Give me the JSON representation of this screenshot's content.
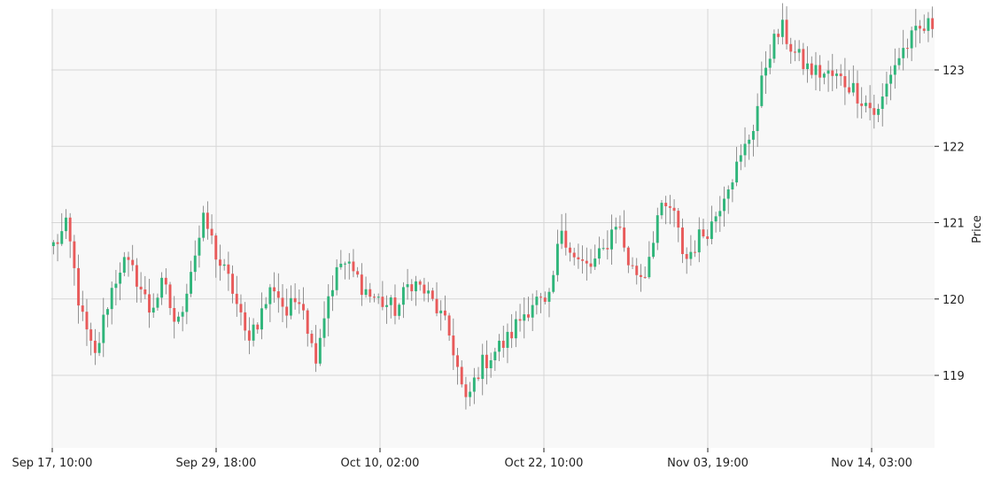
{
  "chart_data": {
    "type": "candlestick",
    "ylabel": "Price",
    "ylim": [
      118.05,
      123.8
    ],
    "yticks": [
      119,
      120,
      121,
      122,
      123
    ],
    "x_tick_labels": [
      "Sep 17, 10:00",
      "Sep 29, 18:00",
      "Oct 10, 02:00",
      "Oct 22, 10:00",
      "Nov 03, 19:00",
      "Nov 14, 03:00"
    ],
    "grid": true,
    "colors": {
      "up": "#2fb57a",
      "down": "#e85a5a",
      "wick": "#777777",
      "plot_bg": "#f8f8f8",
      "grid": "#d6d6d6"
    },
    "anchor_closes": [
      120.7,
      120.95,
      119.8,
      119.2,
      120.0,
      120.5,
      120.3,
      119.85,
      120.2,
      119.6,
      120.4,
      121.05,
      120.5,
      120.15,
      119.5,
      119.75,
      120.2,
      119.8,
      120.1,
      119.2,
      120.05,
      120.5,
      120.3,
      120.05,
      119.95,
      119.85,
      120.25,
      120.1,
      119.85,
      119.45,
      118.6,
      119.1,
      119.3,
      119.45,
      119.75,
      120.0,
      119.85,
      120.95,
      120.5,
      120.4,
      120.6,
      121.05,
      120.4,
      120.3,
      121.1,
      121.2,
      120.5,
      120.8,
      121.0,
      121.5,
      121.8,
      122.3,
      123.2,
      123.55,
      123.2,
      123.0,
      122.95,
      122.9,
      122.8,
      122.6,
      122.4,
      123.0,
      123.3,
      123.5,
      123.6
    ]
  }
}
